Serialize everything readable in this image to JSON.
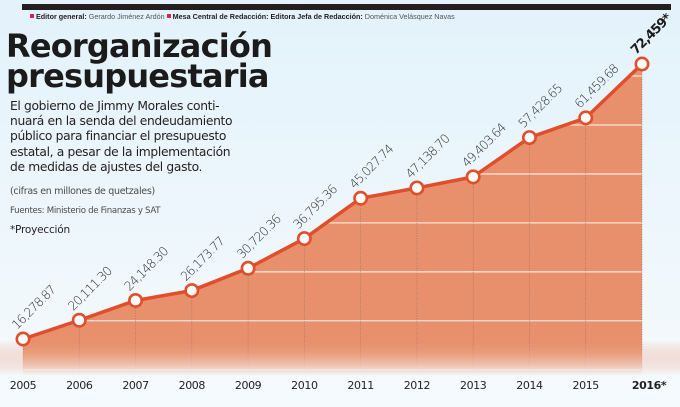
{
  "header": {
    "credits": [
      {
        "role": "Editor general:",
        "name": "Gerardo Jiménez Ardón"
      },
      {
        "role": "Mesa Central de Redacción: Editora Jefa de Redacción:",
        "name": "Doménica Velásquez Navas"
      }
    ],
    "accent_color": "#d6244d"
  },
  "title_lines": [
    "Reorganización",
    "presupuestaria"
  ],
  "description_lines": [
    "El gobierno de Jimmy Morales conti-",
    "nuará en la senda del endeudamiento",
    "público para financiar el presupuesto",
    "estatal, a pesar de la implementación",
    "de medidas de ajustes del gasto."
  ],
  "notes": {
    "units": "(cifras en millones de quetzales)",
    "source": "Fuentes: Ministerio de Finanzas y SAT",
    "projection": "*Proyección"
  },
  "chart_data": {
    "type": "area",
    "title": "Reorganización presupuestaria",
    "xlabel": "",
    "ylabel": "millones de quetzales",
    "categories": [
      "2005",
      "2006",
      "2007",
      "2008",
      "2009",
      "2010",
      "2011",
      "2012",
      "2013",
      "2014",
      "2015",
      "2016*"
    ],
    "values": [
      16278.87,
      20111.3,
      24148.3,
      26173.77,
      30720.36,
      36795.36,
      45027.74,
      47138.7,
      49403.64,
      57428.65,
      61459.68,
      72459
    ],
    "data_labels": [
      "16,278.87",
      "20,111.30",
      "24,148.30",
      "26,173.77",
      "30,720.36",
      "36,795.36",
      "45,027.74",
      "47,138.70",
      "49,403.64",
      "57,428.65",
      "61,459.68",
      "72,459*"
    ],
    "projected": [
      "2016*"
    ],
    "ylim": [
      0,
      80000
    ],
    "grid": true,
    "legend": "none",
    "colors": {
      "line": "#e04e2c",
      "fill": "#e8906c",
      "marker_fill": "#ffffff",
      "grid": "#fbe3d6"
    }
  }
}
